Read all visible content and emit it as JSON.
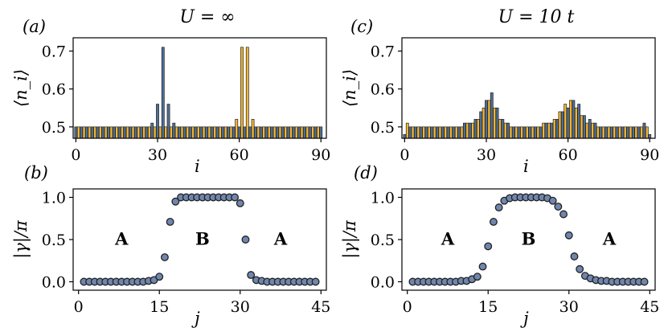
{
  "colors": {
    "blue": "#4f6f96",
    "orange": "#f2b534",
    "marker": "#6f86ad",
    "edge": "#222222"
  },
  "chart_data": [
    {
      "panel": "(a)",
      "type": "bar",
      "title": "U = ∞",
      "xlabel": "i",
      "ylabel": "⟨n_i⟩",
      "xlim": [
        -1,
        92
      ],
      "ylim": [
        0.47,
        0.735
      ],
      "xticks": [
        "0",
        "30",
        "60",
        "90"
      ],
      "xtick_values": [
        0,
        30,
        60,
        90
      ],
      "yticks": [
        "0.5",
        "0.6",
        "0.7"
      ],
      "ytick_values": [
        0.5,
        0.6,
        0.7
      ],
      "series": [
        {
          "name": "blue",
          "color": "#4f6f96",
          "x": [
            0,
            2,
            4,
            6,
            8,
            10,
            12,
            14,
            16,
            18,
            20,
            22,
            24,
            26,
            28,
            30,
            32,
            34,
            36,
            38,
            40,
            42,
            44,
            46,
            48,
            50,
            52,
            54,
            56,
            58,
            60,
            62,
            64,
            66,
            68,
            70,
            72,
            74,
            76,
            78,
            80,
            82,
            84,
            86,
            88,
            90
          ],
          "values": [
            0.5,
            0.5,
            0.5,
            0.5,
            0.5,
            0.5,
            0.5,
            0.5,
            0.5,
            0.5,
            0.5,
            0.5,
            0.5,
            0.5,
            0.51,
            0.56,
            0.71,
            0.56,
            0.51,
            0.5,
            0.5,
            0.5,
            0.5,
            0.5,
            0.5,
            0.5,
            0.5,
            0.5,
            0.5,
            0.5,
            0.5,
            0.5,
            0.5,
            0.5,
            0.5,
            0.5,
            0.5,
            0.5,
            0.5,
            0.5,
            0.5,
            0.5,
            0.5,
            0.5,
            0.5,
            0.5
          ]
        },
        {
          "name": "orange",
          "color": "#f2b534",
          "x": [
            1,
            3,
            5,
            7,
            9,
            11,
            13,
            15,
            17,
            19,
            21,
            23,
            25,
            27,
            29,
            31,
            33,
            35,
            37,
            39,
            41,
            43,
            45,
            47,
            49,
            51,
            53,
            55,
            57,
            59,
            61,
            63,
            65,
            67,
            69,
            71,
            73,
            75,
            77,
            79,
            81,
            83,
            85,
            87,
            89
          ],
          "values": [
            0.5,
            0.5,
            0.5,
            0.5,
            0.5,
            0.5,
            0.5,
            0.5,
            0.5,
            0.5,
            0.5,
            0.5,
            0.5,
            0.5,
            0.5,
            0.5,
            0.5,
            0.5,
            0.5,
            0.5,
            0.5,
            0.5,
            0.5,
            0.5,
            0.5,
            0.5,
            0.5,
            0.5,
            0.5,
            0.52,
            0.71,
            0.71,
            0.52,
            0.5,
            0.5,
            0.5,
            0.5,
            0.5,
            0.5,
            0.5,
            0.5,
            0.5,
            0.5,
            0.5,
            0.5
          ]
        }
      ]
    },
    {
      "panel": "(c)",
      "type": "bar",
      "title": "U = 10 t",
      "xlabel": "i",
      "ylabel": "⟨n_i⟩",
      "xlim": [
        -1,
        92
      ],
      "ylim": [
        0.47,
        0.735
      ],
      "xticks": [
        "0",
        "30",
        "60",
        "90"
      ],
      "xtick_values": [
        0,
        30,
        60,
        90
      ],
      "yticks": [
        "0.5",
        "0.6",
        "0.7"
      ],
      "ytick_values": [
        0.5,
        0.6,
        0.7
      ],
      "series": [
        {
          "name": "blue",
          "color": "#4f6f96",
          "x": [
            0,
            2,
            4,
            6,
            8,
            10,
            12,
            14,
            16,
            18,
            20,
            22,
            24,
            26,
            28,
            30,
            32,
            34,
            36,
            38,
            40,
            42,
            44,
            46,
            48,
            50,
            52,
            54,
            56,
            58,
            60,
            62,
            64,
            66,
            68,
            70,
            72,
            74,
            76,
            78,
            80,
            82,
            84,
            86,
            88,
            90
          ],
          "values": [
            0.48,
            0.5,
            0.5,
            0.5,
            0.5,
            0.5,
            0.5,
            0.5,
            0.5,
            0.5,
            0.5,
            0.51,
            0.51,
            0.52,
            0.54,
            0.57,
            0.59,
            0.55,
            0.52,
            0.51,
            0.5,
            0.5,
            0.5,
            0.5,
            0.5,
            0.5,
            0.51,
            0.51,
            0.52,
            0.54,
            0.55,
            0.57,
            0.56,
            0.53,
            0.52,
            0.51,
            0.5,
            0.5,
            0.5,
            0.5,
            0.5,
            0.5,
            0.5,
            0.5,
            0.51,
            0.48
          ]
        },
        {
          "name": "orange",
          "color": "#f2b534",
          "x": [
            1,
            3,
            5,
            7,
            9,
            11,
            13,
            15,
            17,
            19,
            21,
            23,
            25,
            27,
            29,
            31,
            33,
            35,
            37,
            39,
            41,
            43,
            45,
            47,
            49,
            51,
            53,
            55,
            57,
            59,
            61,
            63,
            65,
            67,
            69,
            71,
            73,
            75,
            77,
            79,
            81,
            83,
            85,
            87,
            89
          ],
          "values": [
            0.51,
            0.5,
            0.5,
            0.5,
            0.5,
            0.5,
            0.5,
            0.5,
            0.5,
            0.5,
            0.5,
            0.51,
            0.51,
            0.52,
            0.55,
            0.57,
            0.55,
            0.52,
            0.51,
            0.5,
            0.5,
            0.5,
            0.5,
            0.5,
            0.5,
            0.51,
            0.51,
            0.52,
            0.54,
            0.56,
            0.57,
            0.55,
            0.53,
            0.51,
            0.51,
            0.5,
            0.5,
            0.5,
            0.5,
            0.5,
            0.5,
            0.5,
            0.5,
            0.5,
            0.5
          ]
        }
      ]
    },
    {
      "panel": "(b)",
      "type": "scatter",
      "xlabel": "j",
      "ylabel": "|γ|/π",
      "xlim": [
        -1,
        46
      ],
      "ylim": [
        -0.1,
        1.1
      ],
      "xticks": [
        "0",
        "15",
        "30",
        "45"
      ],
      "xtick_values": [
        0,
        15,
        30,
        45
      ],
      "yticks": [
        "0.0",
        "0.5",
        "1.0"
      ],
      "ytick_values": [
        0,
        0.5,
        1
      ],
      "x": [
        1,
        2,
        3,
        4,
        5,
        6,
        7,
        8,
        9,
        10,
        11,
        12,
        13,
        14,
        15,
        16,
        17,
        18,
        19,
        20,
        21,
        22,
        23,
        24,
        25,
        26,
        27,
        28,
        29,
        30,
        31,
        32,
        33,
        34,
        35,
        36,
        37,
        38,
        39,
        40,
        41,
        42,
        43,
        44
      ],
      "y": [
        0,
        0,
        0,
        0,
        0,
        0,
        0,
        0,
        0,
        0,
        0,
        0,
        0.01,
        0.02,
        0.06,
        0.29,
        0.71,
        0.95,
        1,
        1,
        1,
        1,
        1,
        1,
        1,
        1,
        1,
        1,
        1,
        0.93,
        0.5,
        0.08,
        0.02,
        0.01,
        0,
        0,
        0,
        0,
        0,
        0,
        0,
        0,
        0,
        0
      ],
      "annotations": [
        {
          "text": "A",
          "x": 8,
          "y": 0.44
        },
        {
          "text": "B",
          "x": 23,
          "y": 0.44
        },
        {
          "text": "A",
          "x": 37.5,
          "y": 0.44
        }
      ]
    },
    {
      "panel": "(d)",
      "type": "scatter",
      "xlabel": "j",
      "ylabel": "|γ|/π",
      "xlim": [
        -1,
        46
      ],
      "ylim": [
        -0.1,
        1.1
      ],
      "xticks": [
        "0",
        "15",
        "30",
        "45"
      ],
      "xtick_values": [
        0,
        15,
        30,
        45
      ],
      "yticks": [
        "0.0",
        "0.5",
        "1.0"
      ],
      "ytick_values": [
        0,
        0.5,
        1
      ],
      "x": [
        1,
        2,
        3,
        4,
        5,
        6,
        7,
        8,
        9,
        10,
        11,
        12,
        13,
        14,
        15,
        16,
        17,
        18,
        19,
        20,
        21,
        22,
        23,
        24,
        25,
        26,
        27,
        28,
        29,
        30,
        31,
        32,
        33,
        34,
        35,
        36,
        37,
        38,
        39,
        40,
        41,
        42,
        43,
        44
      ],
      "y": [
        0,
        0,
        0,
        0,
        0,
        0,
        0,
        0,
        0,
        0.01,
        0.01,
        0.03,
        0.06,
        0.18,
        0.42,
        0.71,
        0.88,
        0.96,
        0.99,
        1,
        1,
        1,
        1,
        1,
        1,
        0.99,
        0.96,
        0.89,
        0.8,
        0.55,
        0.3,
        0.15,
        0.07,
        0.04,
        0.02,
        0.01,
        0.01,
        0,
        0,
        0,
        0,
        0,
        0,
        0
      ],
      "annotations": [
        {
          "text": "A",
          "x": 7.5,
          "y": 0.44
        },
        {
          "text": "B",
          "x": 22.5,
          "y": 0.44
        },
        {
          "text": "A",
          "x": 37.5,
          "y": 0.44
        }
      ]
    }
  ]
}
